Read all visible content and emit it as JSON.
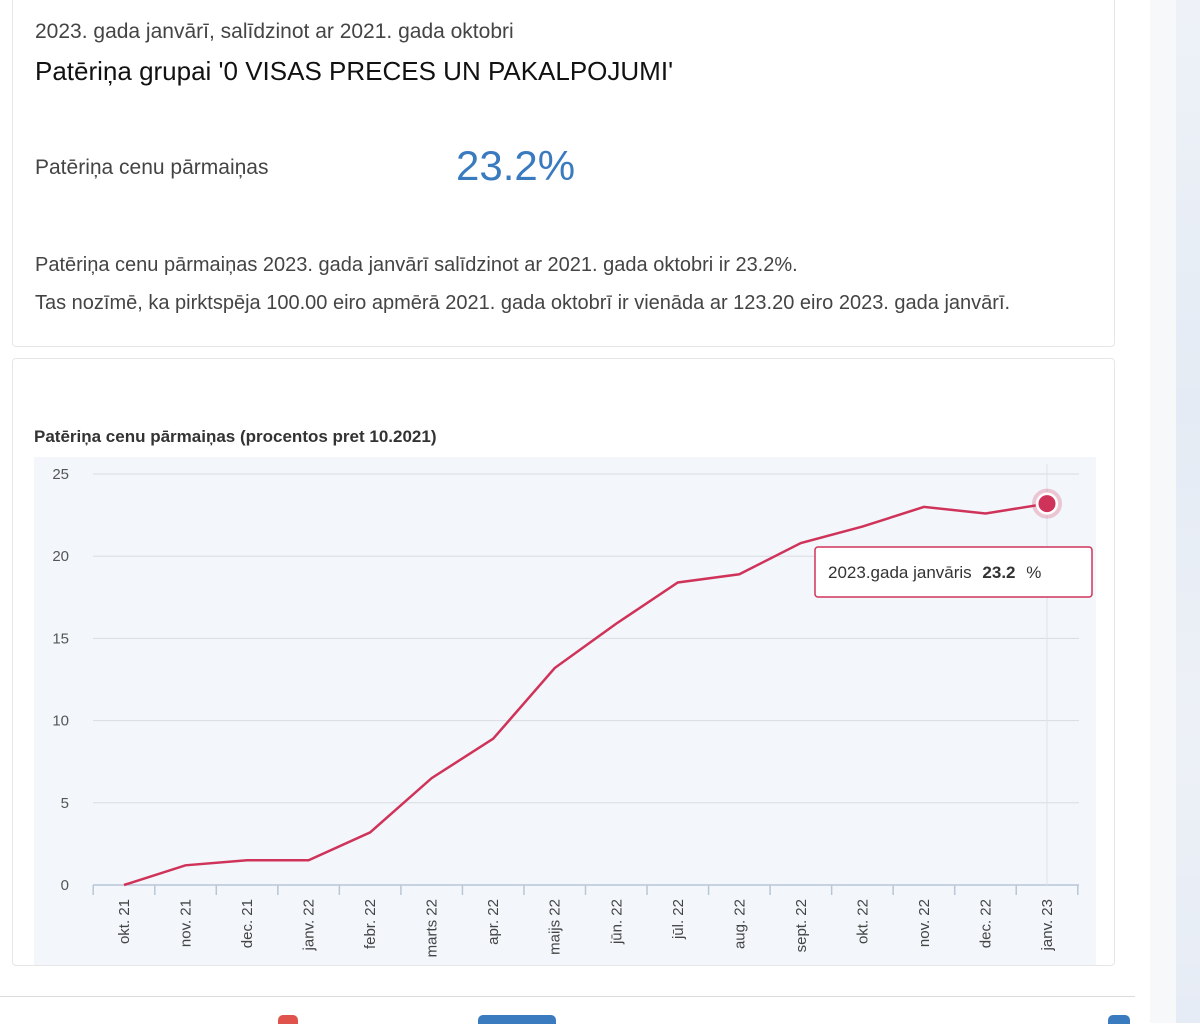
{
  "header": {
    "subtitle": "2023. gada janvārī, salīdzinot ar 2021. gada oktobri",
    "title": "Patēriņa grupai '0 VISAS PRECES UN PAKALPOJUMI'"
  },
  "metric": {
    "label": "Patēriņa cenu pārmaiņas",
    "value": "23.2%"
  },
  "description": {
    "line1": "Patēriņa cenu pārmaiņas 2023. gada janvārī salīdzinot ar 2021. gada oktobri ir 23.2%.",
    "line2": "Tas nozīmē, ka pirktspēja 100.00 eiro apmērā 2021. gada oktobrī ir vienāda ar 123.20 eiro 2023. gada janvārī."
  },
  "tooltip": {
    "label": "2023.gada janvāris",
    "value": "23.2",
    "unit": "%"
  },
  "colors": {
    "accent_blue": "#3a7bbf",
    "series": "#d0335a",
    "plot_bg": "#f3f7fb"
  },
  "chart_data": {
    "type": "line",
    "title": "Patēriņa cenu pārmaiņas (procentos pret 10.2021)",
    "xlabel": "",
    "ylabel": "",
    "categories": [
      "okt. 21",
      "nov. 21",
      "dec. 21",
      "janv. 22",
      "febr. 22",
      "marts 22",
      "apr. 22",
      "maijs 22",
      "jūn. 22",
      "jūl. 22",
      "aug. 22",
      "sept. 22",
      "okt. 22",
      "nov. 22",
      "dec. 22",
      "janv. 23"
    ],
    "series": [
      {
        "name": "Patēriņa cenu pārmaiņas",
        "values": [
          0.0,
          1.2,
          1.5,
          1.5,
          3.2,
          6.5,
          8.9,
          13.2,
          15.9,
          18.4,
          18.9,
          20.8,
          21.8,
          23.0,
          22.6,
          23.2
        ]
      }
    ],
    "ylim": [
      0,
      25
    ],
    "yticks": [
      0,
      5,
      10,
      15,
      20,
      25
    ],
    "grid": true,
    "highlighted_index": 15
  }
}
